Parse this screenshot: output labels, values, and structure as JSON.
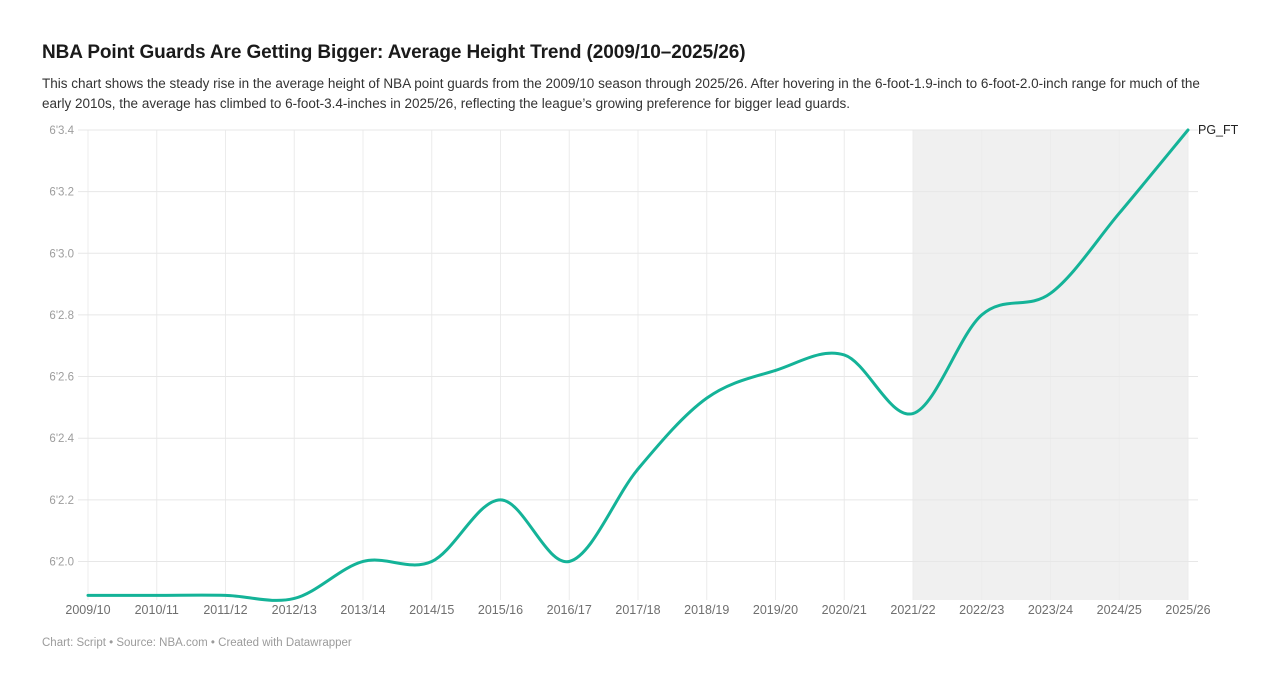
{
  "header": {
    "title": "NBA Point Guards Are Getting Bigger: Average Height Trend (2009/10–2025/26)",
    "description": "This chart shows the steady rise in the average height of NBA point guards from the 2009/10 season through 2025/26. After hovering in the 6-foot-1.9-inch to 6-foot-2.0-inch range for much of the early 2010s, the average has climbed to 6-foot-3.4-inches in 2025/26, reflecting the league’s growing preference for bigger lead guards."
  },
  "footer": {
    "credit": "Chart: Script • Source: NBA.com • Created with Datawrapper"
  },
  "chart_data": {
    "type": "line",
    "title": "NBA Point Guards Are Getting Bigger: Average Height Trend (2009/10–2025/26)",
    "categories": [
      "2009/10",
      "2010/11",
      "2011/12",
      "2012/13",
      "2013/14",
      "2014/15",
      "2015/16",
      "2016/17",
      "2017/18",
      "2018/19",
      "2019/20",
      "2020/21",
      "2021/22",
      "2022/23",
      "2023/24",
      "2024/25",
      "2025/26"
    ],
    "series": [
      {
        "name": "PG_FT",
        "values": [
          1.89,
          1.89,
          1.89,
          1.88,
          2.0,
          2.0,
          2.2,
          2.0,
          2.3,
          2.53,
          2.62,
          2.67,
          2.48,
          2.8,
          2.87,
          3.13,
          3.4
        ]
      }
    ],
    "unit": "height in feet'inches (6 ft + X.X in)",
    "y_ticks": [
      {
        "value": 3.4,
        "label": "6'3.4"
      },
      {
        "value": 3.2,
        "label": "6'3.2"
      },
      {
        "value": 3.0,
        "label": "6'3.0"
      },
      {
        "value": 2.8,
        "label": "6'2.8"
      },
      {
        "value": 2.6,
        "label": "6'2.6"
      },
      {
        "value": 2.4,
        "label": "6'2.4"
      },
      {
        "value": 2.2,
        "label": "6'2.2"
      },
      {
        "value": 2.0,
        "label": "6'2.0"
      }
    ],
    "ylim": [
      1.875,
      3.4
    ],
    "grid": true,
    "curve": "smooth",
    "legend_position": "end-of-line",
    "highlight_region": {
      "from": "2021/22",
      "to": "2025/26"
    }
  },
  "colors": {
    "line": "#14b398",
    "highlight_region": "#f0f0f0",
    "grid_horizontal": "#e7e7e7",
    "grid_vertical": "#ececec",
    "y_tick_text": "#9d9d9d",
    "x_tick_text": "#6f6f6f",
    "title_text": "#1a1a1a",
    "description_text": "#333333",
    "footer_text": "#9b9b9b",
    "series_label_text": "#222222",
    "background": "#ffffff"
  }
}
